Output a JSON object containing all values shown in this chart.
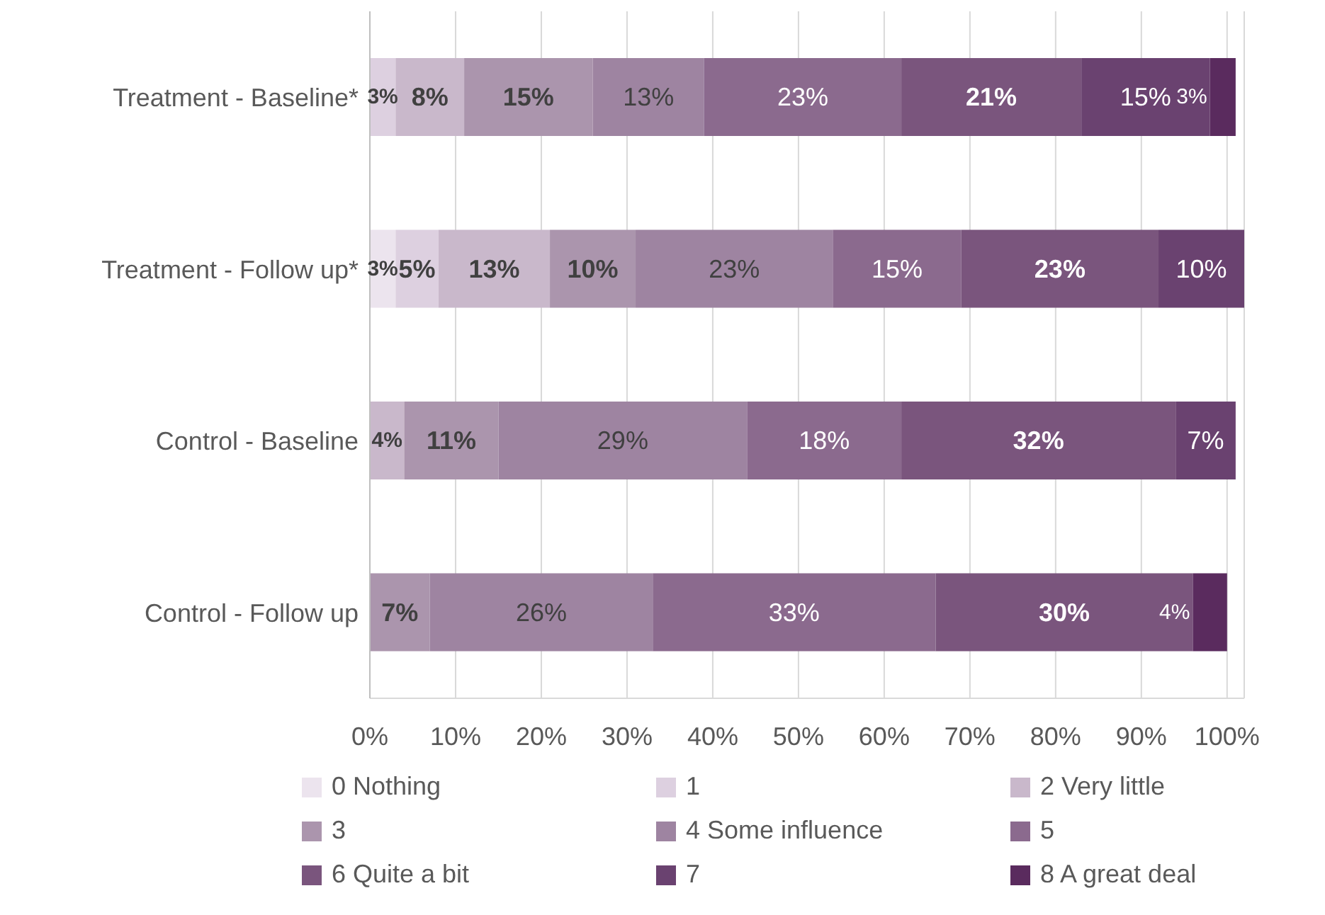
{
  "chart_data": {
    "type": "bar",
    "orientation": "horizontal",
    "stacked": true,
    "categories": [
      "Treatment - Baseline*",
      "Treatment - Follow up*",
      "Control - Baseline",
      "Control - Follow up"
    ],
    "series": [
      {
        "name": "0 Nothing",
        "color": "#ece4ee",
        "values": [
          null,
          3,
          null,
          null
        ],
        "value_labels": [
          null,
          "3%",
          null,
          null
        ]
      },
      {
        "name": "1",
        "color": "#ddd0e0",
        "values": [
          3,
          5,
          null,
          null
        ],
        "value_labels": [
          "3%",
          "5%",
          null,
          null
        ]
      },
      {
        "name": "2 Very little",
        "color": "#c9b8cb",
        "values": [
          8,
          13,
          4,
          null
        ],
        "value_labels": [
          "8%",
          "13%",
          "4%",
          null
        ]
      },
      {
        "name": "3",
        "color": "#ab95ad",
        "values": [
          15,
          10,
          11,
          7
        ],
        "value_labels": [
          "15%",
          "10%",
          "11%",
          "7%"
        ]
      },
      {
        "name": "4 Some influence",
        "color": "#9e84a1",
        "values": [
          13,
          23,
          29,
          26
        ],
        "value_labels": [
          "13%",
          "23%",
          "29%",
          "26%"
        ]
      },
      {
        "name": "5",
        "color": "#8b6a8e",
        "values": [
          23,
          15,
          18,
          33
        ],
        "value_labels": [
          "23%",
          "15%",
          "18%",
          "33%"
        ]
      },
      {
        "name": "6 Quite a bit",
        "color": "#7a557d",
        "values": [
          21,
          23,
          32,
          30
        ],
        "value_labels": [
          "21%",
          "23%",
          "32%",
          "30%"
        ]
      },
      {
        "name": "7",
        "color": "#6a4270",
        "values": [
          15,
          10,
          7,
          null
        ],
        "value_labels": [
          "15%",
          "10%",
          "7%",
          null
        ]
      },
      {
        "name": "8 A great deal",
        "color": "#5a2b5e",
        "values": [
          3,
          null,
          null,
          4
        ],
        "value_labels": [
          "3%",
          null,
          null,
          "4%"
        ]
      }
    ],
    "xlim": [
      0,
      102
    ],
    "xticks": [
      {
        "value": 0,
        "label": "0%"
      },
      {
        "value": 10,
        "label": "10%"
      },
      {
        "value": 20,
        "label": "20%"
      },
      {
        "value": 30,
        "label": "30%"
      },
      {
        "value": 40,
        "label": "40%"
      },
      {
        "value": 50,
        "label": "50%"
      },
      {
        "value": 60,
        "label": "60%"
      },
      {
        "value": 70,
        "label": "70%"
      },
      {
        "value": 80,
        "label": "80%"
      },
      {
        "value": 90,
        "label": "90%"
      },
      {
        "value": 100,
        "label": "100%"
      }
    ],
    "grid": "x",
    "legend": "bottom"
  }
}
